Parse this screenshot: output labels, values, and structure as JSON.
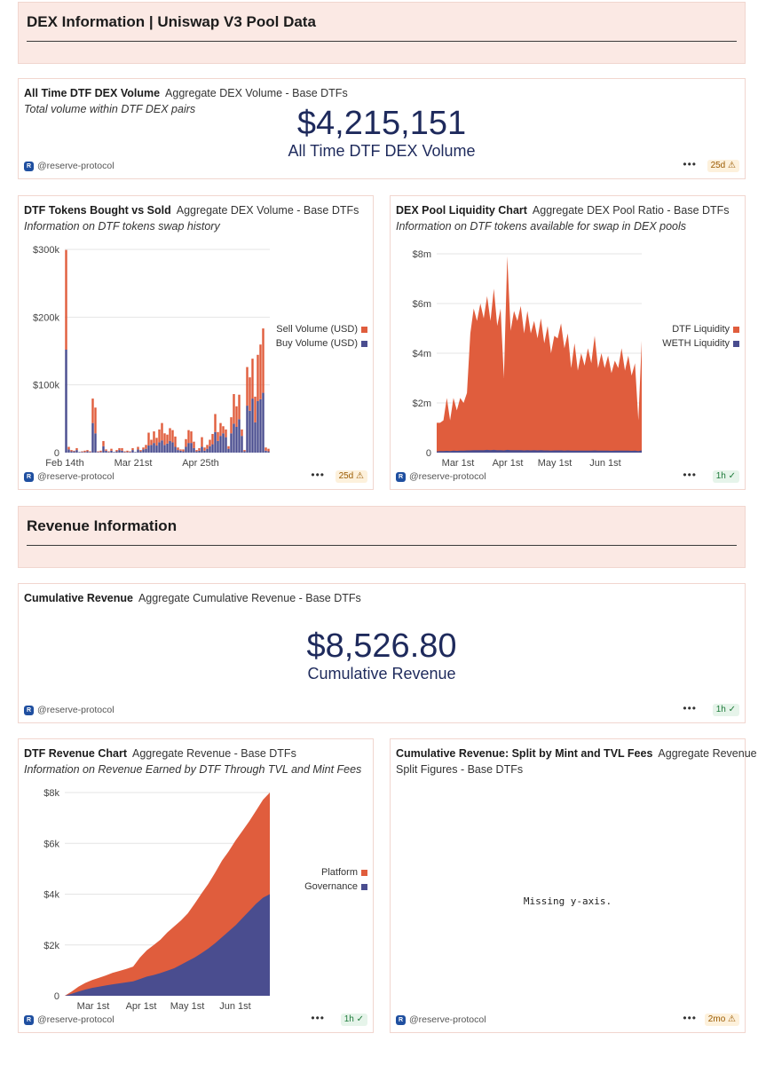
{
  "sections": {
    "dex": "DEX Information | Uniswap V3 Pool Data",
    "revenue": "Revenue Information"
  },
  "colors": {
    "orange": "#e05d3d",
    "blue": "#4a4d8f"
  },
  "handle": "@reserve-protocol",
  "dots": "•••",
  "logo": "R",
  "card1": {
    "title": "All Time DTF DEX Volume",
    "query": "Aggregate DEX Volume - Base DTFs",
    "subtitle": "Total volume within DTF DEX pairs",
    "value": "$4,215,151",
    "label": "All Time DTF DEX Volume",
    "badge": "25d ⚠"
  },
  "card2": {
    "title": "DTF Tokens Bought vs Sold",
    "query": "Aggregate DEX Volume - Base DTFs",
    "subtitle": "Information on DTF tokens swap history",
    "badge": "25d ⚠"
  },
  "card3": {
    "title": "DEX Pool Liquidity Chart",
    "query": "Aggregate DEX Pool Ratio - Base DTFs",
    "subtitle": "Information on DTF tokens available for swap in DEX pools",
    "badge": "1h ✓"
  },
  "card4": {
    "title": "Cumulative Revenue",
    "query": "Aggregate Cumulative Revenue - Base DTFs",
    "value": "$8,526.80",
    "label": "Cumulative Revenue",
    "badge": "1h ✓"
  },
  "card5": {
    "title": "DTF Revenue Chart",
    "query": "Aggregate Revenue - Base DTFs",
    "subtitle": "Information on Revenue Earned by DTF Through TVL and Mint Fees",
    "badge": "1h ✓"
  },
  "card6": {
    "title": "Cumulative Revenue: Split by Mint and TVL Fees",
    "query_line1": "Aggregate Revenue",
    "query_line2": "Split Figures - Base DTFs",
    "missing": "Missing y-axis.",
    "badge": "2mo ⚠"
  },
  "chart_data": [
    {
      "id": "bought-vs-sold",
      "type": "bar",
      "stacked": true,
      "yticks": [
        "0",
        "$100k",
        "$200k",
        "$300k"
      ],
      "ylim": [
        0,
        320000
      ],
      "xticks": [
        "Feb 14th",
        "Mar 21st",
        "Apr 25th"
      ],
      "legend": [
        "Sell Volume (USD)",
        "Buy Volume (USD)"
      ],
      "series": [
        {
          "name": "Sell Volume (USD)",
          "values": [
            155000,
            4000,
            2000,
            1000,
            3000,
            0,
            1000,
            2000,
            2000,
            1000,
            38000,
            40000,
            1000,
            2000,
            8000,
            2000,
            1000,
            3000,
            0,
            2000,
            3000,
            4000,
            1000,
            2000,
            1000,
            3000,
            0,
            4000,
            2000,
            3000,
            6000,
            20000,
            8000,
            18000,
            12000,
            20000,
            27000,
            18000,
            14000,
            20000,
            19000,
            16000,
            4000,
            2000,
            3000,
            12000,
            20000,
            18000,
            10000,
            2000,
            4000,
            15000,
            5000,
            6000,
            10000,
            16000,
            28000,
            14000,
            20000,
            11000,
            12000,
            4000,
            25000,
            46000,
            32000,
            38000,
            10000,
            2000,
            60000,
            52000,
            62000,
            40000,
            72000,
            85000,
            100000,
            5000,
            4000
          ]
        },
        {
          "name": "Buy Volume (USD)",
          "values": [
            160000,
            5000,
            2000,
            2000,
            4000,
            1000,
            1000,
            1000,
            2000,
            1000,
            46000,
            30000,
            1000,
            1000,
            10000,
            3000,
            1000,
            3000,
            1000,
            2000,
            4000,
            3000,
            1000,
            1000,
            1000,
            4000,
            1000,
            5000,
            2000,
            5000,
            6000,
            11000,
            12000,
            15000,
            11000,
            16000,
            19000,
            12000,
            14000,
            18000,
            16000,
            9000,
            4000,
            3000,
            2000,
            9000,
            15000,
            15000,
            7000,
            2000,
            3000,
            9000,
            3000,
            6000,
            10000,
            13000,
            32000,
            18000,
            26000,
            30000,
            24000,
            6000,
            30000,
            45000,
            40000,
            52000,
            26000,
            2000,
            73000,
            65000,
            84000,
            47000,
            80000,
            83000,
            93000,
            3000,
            2000
          ]
        }
      ]
    },
    {
      "id": "pool-liquidity",
      "type": "area",
      "yticks": [
        "0",
        "$2m",
        "$4m",
        "$6m",
        "$8m"
      ],
      "ylim": [
        0,
        8000000
      ],
      "xticks": [
        "Mar 1st",
        "Apr 1st",
        "May 1st",
        "Jun 1st"
      ],
      "legend": [
        "DTF Liquidity",
        "WETH Liquidity"
      ],
      "series": [
        {
          "name": "DTF Liquidity",
          "values": [
            1200000,
            1200000,
            1300000,
            2200000,
            1300000,
            2200000,
            1700000,
            2200000,
            2000000,
            2400000,
            4800000,
            5800000,
            5300000,
            6000000,
            5400000,
            6300000,
            5300000,
            6600000,
            5100000,
            5800000,
            3000000,
            7900000,
            4900000,
            5700000,
            5300000,
            5900000,
            4800000,
            5700000,
            4800000,
            5300000,
            4600000,
            5400000,
            4400000,
            5100000,
            4000000,
            4700000,
            4600000,
            5200000,
            4200000,
            4800000,
            3400000,
            4400000,
            3300000,
            4000000,
            3500000,
            4200000,
            3600000,
            4700000,
            3400000,
            4000000,
            3400000,
            3900000,
            3200000,
            3700000,
            3400000,
            4200000,
            3300000,
            3900000,
            3100000,
            3600000,
            1300000,
            4500000
          ]
        },
        {
          "name": "WETH Liquidity",
          "values": [
            50000,
            60000,
            60000,
            70000,
            60000,
            80000,
            70000,
            80000,
            80000,
            90000,
            90000,
            100000,
            100000,
            100000,
            100000,
            110000,
            100000,
            110000,
            100000,
            100000,
            90000,
            110000,
            100000,
            100000,
            100000,
            100000,
            90000,
            100000,
            90000,
            100000,
            90000,
            100000,
            90000,
            90000,
            80000,
            90000,
            90000,
            90000,
            80000,
            90000,
            80000,
            80000,
            80000,
            80000,
            80000,
            80000,
            80000,
            90000,
            80000,
            80000,
            80000,
            80000,
            70000,
            80000,
            80000,
            80000,
            80000,
            80000,
            70000,
            80000,
            60000,
            90000
          ]
        }
      ]
    },
    {
      "id": "revenue-chart",
      "type": "area",
      "stacked": true,
      "yticks": [
        "0",
        "$2k",
        "$4k",
        "$6k",
        "$8k"
      ],
      "ylim": [
        0,
        8500
      ],
      "xticks": [
        "Mar 1st",
        "Apr 1st",
        "May 1st",
        "Jun 1st"
      ],
      "legend": [
        "Platform",
        "Governance"
      ],
      "series": [
        {
          "name": "Governance",
          "values": [
            0,
            80,
            180,
            260,
            330,
            380,
            430,
            480,
            520,
            560,
            600,
            700,
            800,
            870,
            950,
            1050,
            1150,
            1300,
            1450,
            1600,
            1780,
            1980,
            2200,
            2450,
            2700,
            2950,
            3250,
            3550,
            3850,
            4100,
            4250
          ]
        },
        {
          "name": "Platform",
          "values": [
            0,
            100,
            200,
            280,
            330,
            370,
            420,
            480,
            520,
            560,
            620,
            900,
            1100,
            1250,
            1400,
            1600,
            1750,
            1850,
            2000,
            2250,
            2500,
            2700,
            2950,
            3200,
            3350,
            3550,
            3650,
            3750,
            3900,
            4100,
            4250
          ]
        }
      ]
    }
  ]
}
